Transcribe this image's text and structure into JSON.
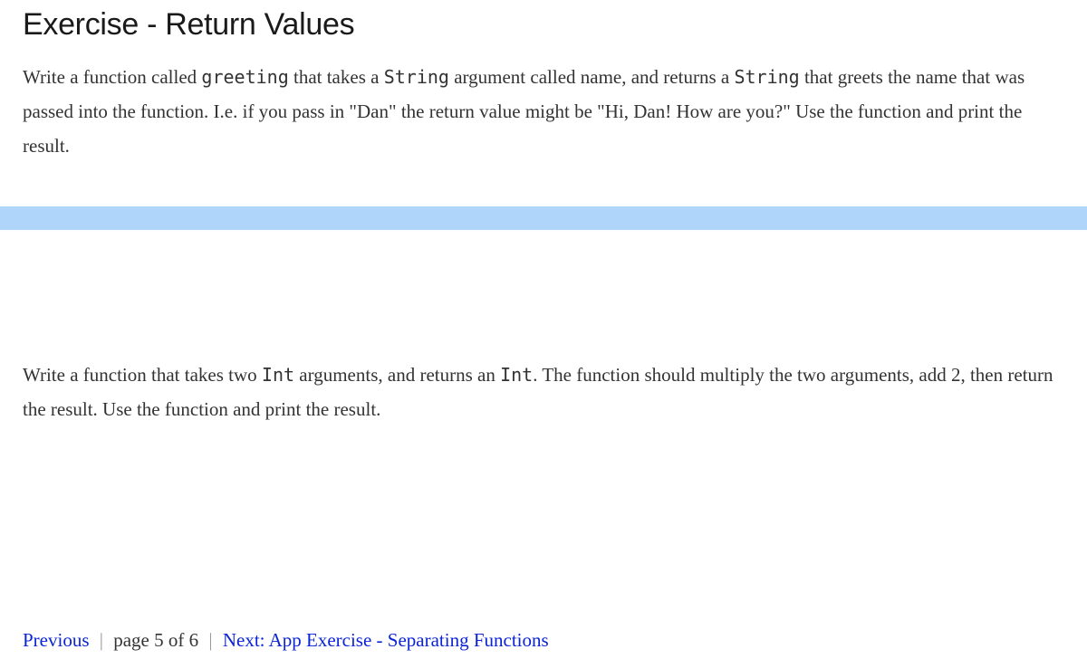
{
  "title": "Exercise - Return Values",
  "paragraph1": {
    "p1": "Write a function called ",
    "code1": "greeting",
    "p2": " that takes a ",
    "code2": "String",
    "p3": " argument called name, and returns a ",
    "code3": "String",
    "p4": " that greets the name that was passed into the function. I.e. if you pass in \"Dan\" the return value might be \"Hi, Dan! How are you?\" Use the function and print the result."
  },
  "paragraph2": {
    "p1": "Write a function that takes two ",
    "code1": "Int",
    "p2": " arguments, and returns an ",
    "code2": "Int",
    "p3": ". The function should multiply the two arguments, add 2, then return the result. Use the function and print the result."
  },
  "nav": {
    "previous": "Previous",
    "page_info": "page 5 of 6",
    "next": "Next: App Exercise - Separating Functions",
    "sep": "|"
  },
  "colors": {
    "highlight": "#b0d5fb",
    "link": "#0b24d4",
    "text": "#333333",
    "title": "#1a1a1a",
    "sep": "#999999",
    "background": "#ffffff"
  },
  "typography": {
    "title_fontsize": 34,
    "body_fontsize": 21,
    "code_fontsize": 20,
    "line_height": 1.8,
    "title_font": "sans-serif",
    "body_font": "serif",
    "code_font": "monospace"
  }
}
